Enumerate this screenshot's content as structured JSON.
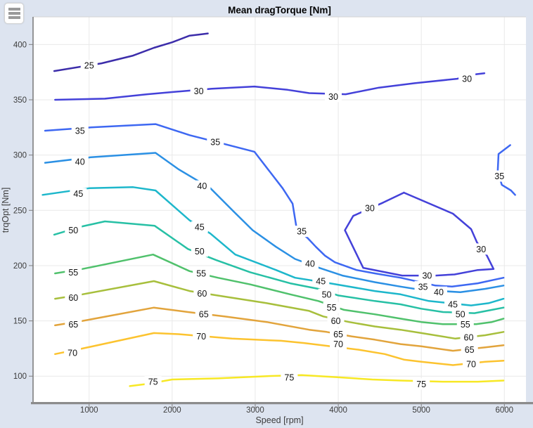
{
  "window": {
    "page_background": "#dde4f0",
    "plot_background": "#ffffff"
  },
  "toolbar": {
    "menu_icon": "hamburger-icon"
  },
  "chart_data": {
    "type": "contour",
    "title": "Mean dragTorque [Nm]",
    "xlabel": "Speed [rpm]",
    "ylabel": "trqOpt [Nm]",
    "xlim": [
      325,
      6260
    ],
    "ylim": [
      76,
      425
    ],
    "xticks": [
      1000,
      2000,
      3000,
      4000,
      5000,
      6000
    ],
    "yticks": [
      100,
      150,
      200,
      250,
      300,
      350,
      400
    ],
    "grid": true,
    "grid_color": "#e9e9e9",
    "data_x_range": [
      600,
      6000
    ],
    "levels": [
      {
        "level": 25,
        "color": "#3C2DAA",
        "paths": [
          [
            [
              580,
              376
            ],
            [
              1150,
              383
            ],
            [
              1530,
              390
            ],
            [
              1780,
              397
            ],
            [
              2000,
              402
            ],
            [
              2210,
              408
            ],
            [
              2320,
              409
            ],
            [
              2430,
              410
            ]
          ]
        ],
        "labels": [
          [
            1000,
            381
          ]
        ]
      },
      {
        "level": 30,
        "color": "#4441D9",
        "paths": [
          [
            [
              590,
              350
            ],
            [
              1190,
              351
            ],
            [
              1700,
              355
            ],
            [
              2000,
              357
            ],
            [
              2480,
              360
            ],
            [
              2990,
              362
            ],
            [
              3390,
              359
            ],
            [
              3650,
              356
            ],
            [
              4090,
              355
            ],
            [
              4490,
              361
            ],
            [
              4920,
              365
            ],
            [
              5430,
              369
            ],
            [
              5650,
              373
            ],
            [
              5760,
              374
            ]
          ],
          [
            [
              4790,
              266
            ],
            [
              5380,
              247
            ],
            [
              5600,
              233
            ],
            [
              5670,
              221
            ],
            [
              5790,
              209
            ],
            [
              5870,
              197
            ],
            [
              5680,
              196
            ],
            [
              5400,
              192
            ],
            [
              5170,
              191
            ],
            [
              4770,
              191
            ],
            [
              4300,
              198
            ],
            [
              4080,
              232
            ],
            [
              4180,
              245
            ],
            [
              4540,
              257
            ],
            [
              4790,
              266
            ]
          ]
        ],
        "labels": [
          [
            2320,
            358
          ],
          [
            3940,
            353
          ],
          [
            5550,
            369
          ],
          [
            4380,
            252
          ],
          [
            5720,
            215
          ],
          [
            5070,
            191
          ]
        ]
      },
      {
        "level": 35,
        "color": "#3E68F2",
        "paths": [
          [
            [
              470,
              322
            ],
            [
              1020,
              325
            ],
            [
              1800,
              328
            ],
            [
              2210,
              318
            ],
            [
              2630,
              310
            ],
            [
              2990,
              303
            ],
            [
              3330,
              270
            ],
            [
              3450,
              256
            ],
            [
              3500,
              233
            ],
            [
              3630,
              225
            ],
            [
              3730,
              217
            ],
            [
              3840,
              209
            ],
            [
              3960,
              203
            ],
            [
              4220,
              196
            ],
            [
              4440,
              193
            ],
            [
              4750,
              189
            ],
            [
              5170,
              182
            ],
            [
              5370,
              181
            ],
            [
              5680,
              184
            ],
            [
              5990,
              189
            ]
          ],
          [
            [
              6070,
              309
            ],
            [
              5930,
              301
            ],
            [
              5920,
              285
            ],
            [
              5970,
              273
            ],
            [
              6080,
              268
            ],
            [
              6130,
              264
            ]
          ]
        ],
        "labels": [
          [
            890,
            322
          ],
          [
            2520,
            312
          ],
          [
            3560,
            231
          ],
          [
            5020,
            181
          ],
          [
            5940,
            281
          ]
        ]
      },
      {
        "level": 40,
        "color": "#2B90E4",
        "paths": [
          [
            [
              470,
              293
            ],
            [
              1020,
              298
            ],
            [
              1800,
              302
            ],
            [
              2080,
              287
            ],
            [
              2460,
              270
            ],
            [
              2740,
              249
            ],
            [
              2970,
              232
            ],
            [
              3250,
              217
            ],
            [
              3480,
              206
            ],
            [
              3770,
              198
            ],
            [
              4050,
              191
            ],
            [
              4440,
              185
            ],
            [
              4750,
              181
            ],
            [
              5000,
              178
            ],
            [
              5470,
              176
            ],
            [
              5770,
              179
            ],
            [
              5990,
              182
            ]
          ]
        ],
        "labels": [
          [
            890,
            294
          ],
          [
            2360,
            272
          ],
          [
            3660,
            202
          ],
          [
            5210,
            176
          ]
        ]
      },
      {
        "level": 45,
        "color": "#1DB7CB",
        "paths": [
          [
            [
              440,
              264
            ],
            [
              1000,
              270
            ],
            [
              1530,
              271
            ],
            [
              1800,
              268
            ],
            [
              2210,
              241
            ],
            [
              2460,
              229
            ],
            [
              2760,
              210
            ],
            [
              3250,
              196
            ],
            [
              3480,
              189
            ],
            [
              3900,
              184
            ],
            [
              4440,
              177
            ],
            [
              4750,
              174
            ],
            [
              5090,
              168
            ],
            [
              5600,
              164
            ],
            [
              5810,
              166
            ],
            [
              5990,
              170
            ]
          ]
        ],
        "labels": [
          [
            870,
            265
          ],
          [
            2330,
            235
          ],
          [
            3790,
            186
          ],
          [
            5380,
            165
          ]
        ]
      },
      {
        "level": 50,
        "color": "#27C0A5",
        "paths": [
          [
            [
              580,
              228
            ],
            [
              890,
              235
            ],
            [
              1190,
              240
            ],
            [
              1790,
              236
            ],
            [
              2190,
              215
            ],
            [
              2530,
              205
            ],
            [
              2940,
              194
            ],
            [
              3420,
              184
            ],
            [
              3760,
              179
            ],
            [
              4000,
              173
            ],
            [
              4440,
              168
            ],
            [
              4750,
              165
            ],
            [
              5000,
              161
            ],
            [
              5260,
              158
            ],
            [
              5640,
              157
            ],
            [
              5850,
              160
            ],
            [
              5990,
              162
            ]
          ]
        ],
        "labels": [
          [
            810,
            232
          ],
          [
            2330,
            213
          ],
          [
            3860,
            174
          ],
          [
            5470,
            156
          ]
        ]
      },
      {
        "level": 55,
        "color": "#50C16C",
        "paths": [
          [
            [
              590,
              193
            ],
            [
              920,
              197
            ],
            [
              1770,
              210
            ],
            [
              2210,
              195
            ],
            [
              2550,
              189
            ],
            [
              2940,
              183
            ],
            [
              3420,
              174
            ],
            [
              3760,
              168
            ],
            [
              4070,
              160
            ],
            [
              4440,
              156
            ],
            [
              4750,
              152
            ],
            [
              5000,
              149
            ],
            [
              5260,
              147
            ],
            [
              5660,
              147
            ],
            [
              5850,
              149
            ],
            [
              5990,
              152
            ]
          ]
        ],
        "labels": [
          [
            810,
            194
          ],
          [
            2350,
            193
          ],
          [
            3920,
            162
          ],
          [
            5530,
            147
          ]
        ]
      },
      {
        "level": 60,
        "color": "#A7BF3C",
        "paths": [
          [
            [
              590,
              170
            ],
            [
              920,
              174
            ],
            [
              1780,
              186
            ],
            [
              2210,
              177
            ],
            [
              2630,
              172
            ],
            [
              3140,
              166
            ],
            [
              3650,
              159
            ],
            [
              3820,
              154
            ],
            [
              4130,
              149
            ],
            [
              4440,
              145
            ],
            [
              4750,
              142
            ],
            [
              5000,
              139
            ],
            [
              5410,
              134
            ],
            [
              5770,
              137
            ],
            [
              5990,
              140
            ]
          ]
        ],
        "labels": [
          [
            810,
            171
          ],
          [
            2360,
            175
          ],
          [
            3970,
            150
          ],
          [
            5570,
            135
          ]
        ]
      },
      {
        "level": 65,
        "color": "#E2A43C",
        "paths": [
          [
            [
              590,
              146
            ],
            [
              920,
              150
            ],
            [
              1780,
              162
            ],
            [
              2190,
              158
            ],
            [
              2630,
              154
            ],
            [
              3140,
              149
            ],
            [
              3650,
              142
            ],
            [
              3860,
              140
            ],
            [
              4160,
              136
            ],
            [
              4440,
              133
            ],
            [
              4750,
              129
            ],
            [
              5000,
              127
            ],
            [
              5380,
              123
            ],
            [
              5770,
              126
            ],
            [
              5990,
              128
            ]
          ]
        ],
        "labels": [
          [
            810,
            147
          ],
          [
            2380,
            156
          ],
          [
            4000,
            138
          ],
          [
            5580,
            124
          ]
        ]
      },
      {
        "level": 70,
        "color": "#FCC32F",
        "paths": [
          [
            [
              590,
              120
            ],
            [
              920,
              125
            ],
            [
              1780,
              139
            ],
            [
              2080,
              138
            ],
            [
              2720,
              134
            ],
            [
              3310,
              132
            ],
            [
              3590,
              130
            ],
            [
              4240,
              124
            ],
            [
              4560,
              120
            ],
            [
              4790,
              115
            ],
            [
              5000,
              113
            ],
            [
              5380,
              110
            ],
            [
              5770,
              113
            ],
            [
              5990,
              114
            ]
          ]
        ],
        "labels": [
          [
            800,
            121
          ],
          [
            2350,
            136
          ],
          [
            4000,
            129
          ],
          [
            5600,
            111
          ]
        ]
      },
      {
        "level": 75,
        "color": "#F7E825",
        "paths": [
          [
            [
              1490,
              91
            ],
            [
              1700,
              93
            ],
            [
              2000,
              97
            ],
            [
              2550,
              98
            ],
            [
              3140,
              100
            ],
            [
              3560,
              101
            ],
            [
              3990,
              99
            ],
            [
              4410,
              97
            ],
            [
              4750,
              96
            ],
            [
              5260,
              95
            ],
            [
              5680,
              95
            ],
            [
              5990,
              96
            ]
          ]
        ],
        "labels": [
          [
            1770,
            95
          ],
          [
            3410,
            99
          ],
          [
            5000,
            93
          ]
        ]
      }
    ]
  }
}
